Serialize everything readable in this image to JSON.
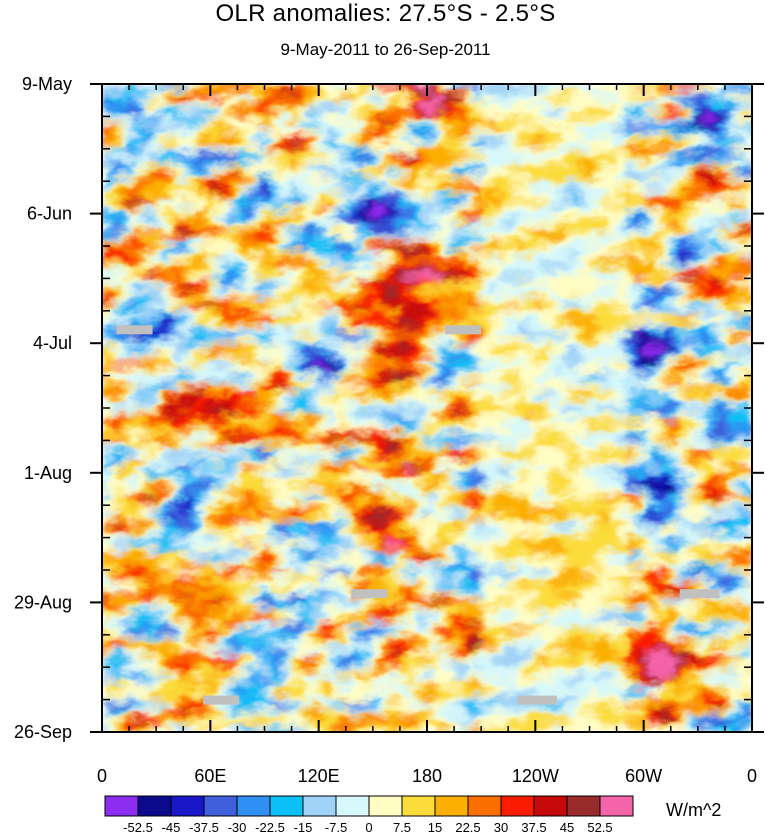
{
  "chart_data": {
    "type": "heatmap",
    "title": "OLR anomalies: 27.5°S - 2.5°S",
    "subtitle": "9-May-2011 to 26-Sep-2011",
    "xlabel": "",
    "ylabel": "",
    "x_ticks": [
      {
        "lon": 0,
        "label": "0"
      },
      {
        "lon": 60,
        "label": "60E"
      },
      {
        "lon": 120,
        "label": "120E"
      },
      {
        "lon": 180,
        "label": "180"
      },
      {
        "lon": 240,
        "label": "120W"
      },
      {
        "lon": 300,
        "label": "60W"
      },
      {
        "lon": 360,
        "label": "0"
      }
    ],
    "x_range": [
      0,
      360
    ],
    "y_ticks": [
      {
        "day": 0,
        "label": "9-May"
      },
      {
        "day": 28,
        "label": "6-Jun"
      },
      {
        "day": 56,
        "label": "4-Jul"
      },
      {
        "day": 84,
        "label": "1-Aug"
      },
      {
        "day": 112,
        "label": "29-Aug"
      },
      {
        "day": 140,
        "label": "26-Sep"
      }
    ],
    "y_range_days": [
      0,
      140
    ],
    "colorbar": {
      "unit_label": "W/m^2",
      "levels": [
        "-52.5",
        "-45",
        "-37.5",
        "-30",
        "-22.5",
        "-15",
        "-7.5",
        "0",
        "7.5",
        "15",
        "22.5",
        "30",
        "37.5",
        "45",
        "52.5"
      ],
      "colors": [
        "#8b2cf0",
        "#0c0a8c",
        "#1818c8",
        "#3f5fdd",
        "#2f8ff2",
        "#0ac0f5",
        "#a0d2f7",
        "#d6f8fa",
        "#fffdc4",
        "#fbdc3a",
        "#fbaf00",
        "#fa7000",
        "#fa1c00",
        "#c60a0a",
        "#9a2b2b",
        "#f464a8"
      ]
    },
    "missing_data": [
      {
        "lon_range": [
          8,
          28
        ],
        "day": 53
      },
      {
        "lon_range": [
          190,
          210
        ],
        "day": 53
      },
      {
        "lon_range": [
          138,
          158
        ],
        "day": 110
      },
      {
        "lon_range": [
          320,
          342
        ],
        "day": 110
      },
      {
        "lon_range": [
          56,
          76
        ],
        "day": 133
      },
      {
        "lon_range": [
          230,
          252
        ],
        "day": 133
      }
    ]
  }
}
